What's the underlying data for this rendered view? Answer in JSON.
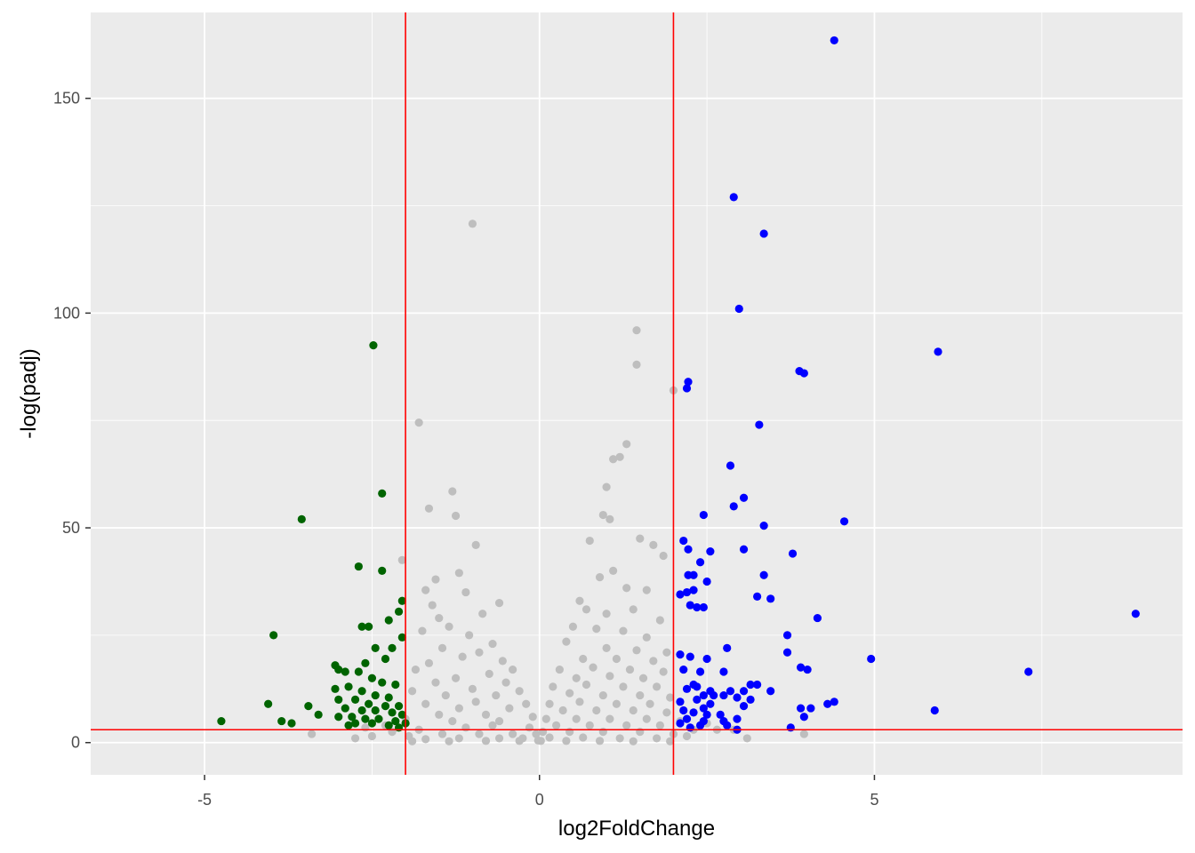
{
  "chart_data": {
    "type": "scatter",
    "title": "",
    "xlabel": "log2FoldChange",
    "ylabel": "-log(padj)",
    "xlim": [
      -6.7,
      9.6
    ],
    "ylim": [
      -7.5,
      170
    ],
    "x_ticks": [
      -5,
      0,
      5
    ],
    "x_tick_labels": [
      "-5",
      "0",
      "5"
    ],
    "y_ticks": [
      0,
      50,
      100,
      150
    ],
    "y_tick_labels": [
      "0",
      "50",
      "100",
      "150"
    ],
    "grid": true,
    "legend": "none",
    "thresholds": {
      "vlines": [
        -2,
        2
      ],
      "hline": 3,
      "color": "#ff0000"
    },
    "colors": {
      "not_significant": "#bebebe",
      "down": "#006400",
      "up": "#0000ff",
      "panel": "#ebebeb",
      "grid": "#ffffff"
    },
    "series": [
      {
        "key": "not_significant",
        "points": [
          [
            -1.0,
            120.8
          ],
          [
            -1.8,
            74.5
          ],
          [
            -1.65,
            54.5
          ],
          [
            -1.3,
            58.5
          ],
          [
            -1.25,
            52.8
          ],
          [
            -0.95,
            46.0
          ],
          [
            -2.05,
            42.5
          ],
          [
            -1.55,
            38.0
          ],
          [
            -1.7,
            35.5
          ],
          [
            -1.2,
            39.5
          ],
          [
            -1.1,
            35.0
          ],
          [
            -1.6,
            32.0
          ],
          [
            -0.6,
            32.5
          ],
          [
            -0.85,
            30.0
          ],
          [
            -1.5,
            29.0
          ],
          [
            -1.35,
            27.0
          ],
          [
            -1.75,
            26.0
          ],
          [
            -1.05,
            25.0
          ],
          [
            -0.7,
            23.0
          ],
          [
            -1.45,
            22.0
          ],
          [
            -0.9,
            21.0
          ],
          [
            -1.15,
            20.0
          ],
          [
            -0.55,
            19.0
          ],
          [
            -1.65,
            18.5
          ],
          [
            -0.4,
            17.0
          ],
          [
            -1.85,
            17.0
          ],
          [
            -0.75,
            16.0
          ],
          [
            -1.25,
            15.0
          ],
          [
            -0.5,
            14.0
          ],
          [
            -1.55,
            14.0
          ],
          [
            -0.3,
            12.0
          ],
          [
            -1.0,
            12.5
          ],
          [
            -1.9,
            12.0
          ],
          [
            -0.65,
            11.0
          ],
          [
            -1.4,
            11.0
          ],
          [
            -0.2,
            9.0
          ],
          [
            -0.95,
            9.5
          ],
          [
            -1.7,
            9.0
          ],
          [
            -0.45,
            8.0
          ],
          [
            -1.2,
            8.0
          ],
          [
            -0.1,
            6.0
          ],
          [
            -0.8,
            6.5
          ],
          [
            -1.5,
            6.5
          ],
          [
            -2.0,
            5.5
          ],
          [
            -0.6,
            5.0
          ],
          [
            -1.3,
            5.0
          ],
          [
            -0.15,
            3.5
          ],
          [
            -0.7,
            4.0
          ],
          [
            -1.1,
            3.5
          ],
          [
            -1.8,
            3.0
          ],
          [
            -0.05,
            2.0
          ],
          [
            -0.4,
            2.0
          ],
          [
            -0.9,
            2.0
          ],
          [
            -1.45,
            2.0
          ],
          [
            -1.95,
            1.5
          ],
          [
            -0.25,
            1.0
          ],
          [
            -0.6,
            1.0
          ],
          [
            -1.2,
            1.0
          ],
          [
            -1.7,
            0.8
          ],
          [
            -0.02,
            0.5
          ],
          [
            -0.3,
            0.4
          ],
          [
            -0.8,
            0.4
          ],
          [
            -1.35,
            0.3
          ],
          [
            -1.9,
            0.3
          ],
          [
            -2.3,
            4.0
          ],
          [
            -2.5,
            1.5
          ],
          [
            -2.75,
            1.0
          ],
          [
            -3.4,
            2.0
          ],
          [
            -2.6,
            3.5
          ],
          [
            -2.2,
            2.5
          ],
          [
            1.45,
            96.0
          ],
          [
            1.45,
            88.0
          ],
          [
            2.0,
            82.0
          ],
          [
            1.3,
            69.5
          ],
          [
            1.1,
            66.0
          ],
          [
            1.2,
            66.5
          ],
          [
            1.0,
            59.5
          ],
          [
            0.95,
            53.0
          ],
          [
            1.05,
            52.0
          ],
          [
            1.7,
            46.0
          ],
          [
            1.5,
            47.5
          ],
          [
            0.75,
            47.0
          ],
          [
            1.85,
            43.5
          ],
          [
            0.9,
            38.5
          ],
          [
            1.1,
            40.0
          ],
          [
            1.3,
            36.0
          ],
          [
            0.6,
            33.0
          ],
          [
            1.6,
            35.5
          ],
          [
            0.7,
            31.0
          ],
          [
            1.0,
            30.0
          ],
          [
            1.4,
            31.0
          ],
          [
            1.8,
            28.5
          ],
          [
            0.5,
            27.0
          ],
          [
            0.85,
            26.5
          ],
          [
            1.25,
            26.0
          ],
          [
            1.6,
            24.5
          ],
          [
            0.4,
            23.5
          ],
          [
            1.0,
            22.0
          ],
          [
            1.45,
            21.5
          ],
          [
            1.9,
            21.0
          ],
          [
            0.65,
            19.5
          ],
          [
            1.15,
            19.5
          ],
          [
            1.7,
            19.0
          ],
          [
            0.3,
            17.0
          ],
          [
            0.8,
            17.5
          ],
          [
            1.35,
            17.0
          ],
          [
            1.85,
            16.5
          ],
          [
            0.55,
            15.0
          ],
          [
            1.05,
            15.5
          ],
          [
            1.55,
            15.0
          ],
          [
            0.2,
            13.0
          ],
          [
            0.7,
            13.5
          ],
          [
            1.25,
            13.0
          ],
          [
            1.75,
            13.0
          ],
          [
            0.45,
            11.5
          ],
          [
            0.95,
            11.0
          ],
          [
            1.5,
            11.0
          ],
          [
            1.95,
            10.5
          ],
          [
            0.15,
            9.0
          ],
          [
            0.6,
            9.5
          ],
          [
            1.15,
            9.0
          ],
          [
            1.65,
            9.0
          ],
          [
            0.35,
            7.5
          ],
          [
            0.85,
            7.5
          ],
          [
            1.4,
            7.5
          ],
          [
            1.9,
            7.0
          ],
          [
            0.1,
            5.5
          ],
          [
            0.55,
            5.5
          ],
          [
            1.05,
            5.5
          ],
          [
            1.6,
            5.5
          ],
          [
            0.25,
            4.0
          ],
          [
            0.75,
            4.0
          ],
          [
            1.3,
            4.0
          ],
          [
            1.8,
            4.0
          ],
          [
            0.05,
            2.5
          ],
          [
            0.45,
            2.5
          ],
          [
            0.95,
            2.5
          ],
          [
            1.5,
            2.5
          ],
          [
            2.0,
            2.0
          ],
          [
            0.15,
            1.2
          ],
          [
            0.65,
            1.2
          ],
          [
            1.2,
            1.0
          ],
          [
            1.75,
            1.0
          ],
          [
            0.02,
            0.4
          ],
          [
            0.4,
            0.4
          ],
          [
            0.9,
            0.4
          ],
          [
            1.4,
            0.3
          ],
          [
            1.95,
            0.3
          ],
          [
            2.1,
            5.0
          ],
          [
            2.3,
            3.0
          ],
          [
            2.5,
            4.5
          ],
          [
            2.65,
            3.0
          ],
          [
            2.9,
            3.0
          ],
          [
            3.1,
            1.0
          ],
          [
            3.95,
            2.0
          ],
          [
            2.2,
            1.5
          ]
        ]
      },
      {
        "key": "down",
        "points": [
          [
            -2.48,
            92.5
          ],
          [
            -2.35,
            58.0
          ],
          [
            -3.55,
            52.0
          ],
          [
            -2.7,
            41.0
          ],
          [
            -2.35,
            40.0
          ],
          [
            -2.05,
            33.0
          ],
          [
            -2.1,
            30.5
          ],
          [
            -2.25,
            28.5
          ],
          [
            -2.65,
            27.0
          ],
          [
            -2.55,
            27.0
          ],
          [
            -3.97,
            25.0
          ],
          [
            -2.05,
            24.5
          ],
          [
            -2.45,
            22.0
          ],
          [
            -2.2,
            22.0
          ],
          [
            -3.05,
            18.0
          ],
          [
            -2.6,
            18.5
          ],
          [
            -2.3,
            19.5
          ],
          [
            -3.0,
            17.0
          ],
          [
            -2.9,
            16.5
          ],
          [
            -2.7,
            16.5
          ],
          [
            -2.5,
            15.0
          ],
          [
            -2.35,
            14.0
          ],
          [
            -2.15,
            13.5
          ],
          [
            -2.85,
            13.0
          ],
          [
            -3.05,
            12.5
          ],
          [
            -2.65,
            12.0
          ],
          [
            -2.45,
            11.0
          ],
          [
            -2.25,
            10.5
          ],
          [
            -3.0,
            10.0
          ],
          [
            -2.75,
            10.0
          ],
          [
            -2.55,
            9.0
          ],
          [
            -2.3,
            8.5
          ],
          [
            -2.1,
            8.5
          ],
          [
            -4.05,
            9.0
          ],
          [
            -3.45,
            8.5
          ],
          [
            -2.9,
            8.0
          ],
          [
            -2.65,
            7.5
          ],
          [
            -2.45,
            7.5
          ],
          [
            -2.2,
            7.0
          ],
          [
            -2.05,
            6.5
          ],
          [
            -3.3,
            6.5
          ],
          [
            -3.0,
            6.0
          ],
          [
            -2.8,
            6.0
          ],
          [
            -2.6,
            5.5
          ],
          [
            -2.4,
            5.5
          ],
          [
            -2.15,
            5.0
          ],
          [
            -2.0,
            4.5
          ],
          [
            -3.85,
            5.0
          ],
          [
            -2.75,
            4.5
          ],
          [
            -2.5,
            4.5
          ],
          [
            -2.25,
            4.0
          ],
          [
            -3.7,
            4.5
          ],
          [
            -4.75,
            5.0
          ],
          [
            -2.85,
            4.0
          ],
          [
            -2.1,
            3.5
          ]
        ]
      },
      {
        "key": "up",
        "points": [
          [
            4.4,
            163.5
          ],
          [
            2.9,
            127.0
          ],
          [
            3.35,
            118.5
          ],
          [
            2.98,
            101.0
          ],
          [
            5.95,
            91.0
          ],
          [
            3.88,
            86.5
          ],
          [
            3.95,
            86.0
          ],
          [
            2.22,
            84.0
          ],
          [
            2.2,
            82.5
          ],
          [
            3.28,
            74.0
          ],
          [
            2.85,
            64.5
          ],
          [
            2.9,
            55.0
          ],
          [
            3.05,
            57.0
          ],
          [
            2.45,
            53.0
          ],
          [
            4.55,
            51.5
          ],
          [
            3.35,
            50.5
          ],
          [
            2.15,
            47.0
          ],
          [
            2.22,
            45.0
          ],
          [
            2.55,
            44.5
          ],
          [
            3.05,
            45.0
          ],
          [
            3.78,
            44.0
          ],
          [
            2.4,
            42.0
          ],
          [
            2.3,
            39.0
          ],
          [
            2.22,
            39.0
          ],
          [
            3.35,
            39.0
          ],
          [
            2.5,
            37.5
          ],
          [
            2.3,
            35.5
          ],
          [
            2.2,
            35.0
          ],
          [
            2.1,
            34.5
          ],
          [
            3.25,
            34.0
          ],
          [
            3.45,
            33.5
          ],
          [
            2.25,
            32.0
          ],
          [
            2.35,
            31.5
          ],
          [
            2.45,
            31.5
          ],
          [
            4.15,
            29.0
          ],
          [
            8.9,
            30.0
          ],
          [
            3.7,
            25.0
          ],
          [
            2.8,
            22.0
          ],
          [
            3.7,
            21.0
          ],
          [
            2.1,
            20.5
          ],
          [
            2.25,
            20.0
          ],
          [
            2.5,
            19.5
          ],
          [
            3.9,
            17.5
          ],
          [
            4.0,
            17.0
          ],
          [
            4.95,
            19.5
          ],
          [
            2.15,
            17.0
          ],
          [
            2.4,
            16.5
          ],
          [
            2.75,
            16.5
          ],
          [
            7.3,
            16.5
          ],
          [
            2.3,
            13.5
          ],
          [
            3.15,
            13.5
          ],
          [
            3.25,
            13.5
          ],
          [
            2.2,
            12.5
          ],
          [
            2.35,
            13.0
          ],
          [
            2.55,
            12.0
          ],
          [
            2.85,
            12.0
          ],
          [
            3.05,
            12.0
          ],
          [
            3.45,
            12.0
          ],
          [
            2.45,
            11.0
          ],
          [
            2.6,
            11.0
          ],
          [
            2.75,
            11.0
          ],
          [
            2.95,
            10.5
          ],
          [
            3.15,
            10.0
          ],
          [
            2.1,
            9.5
          ],
          [
            2.35,
            10.0
          ],
          [
            2.55,
            9.0
          ],
          [
            4.3,
            9.0
          ],
          [
            4.4,
            9.5
          ],
          [
            3.05,
            8.5
          ],
          [
            2.15,
            7.5
          ],
          [
            2.45,
            8.0
          ],
          [
            3.9,
            8.0
          ],
          [
            4.05,
            8.0
          ],
          [
            2.3,
            7.0
          ],
          [
            2.5,
            6.5
          ],
          [
            2.7,
            6.5
          ],
          [
            5.9,
            7.5
          ],
          [
            2.2,
            5.5
          ],
          [
            2.45,
            5.0
          ],
          [
            2.75,
            5.0
          ],
          [
            2.95,
            5.5
          ],
          [
            3.95,
            6.0
          ],
          [
            2.1,
            4.5
          ],
          [
            2.4,
            4.0
          ],
          [
            2.8,
            4.0
          ],
          [
            3.75,
            3.5
          ],
          [
            2.25,
            3.5
          ],
          [
            2.95,
            3.0
          ]
        ]
      }
    ]
  }
}
